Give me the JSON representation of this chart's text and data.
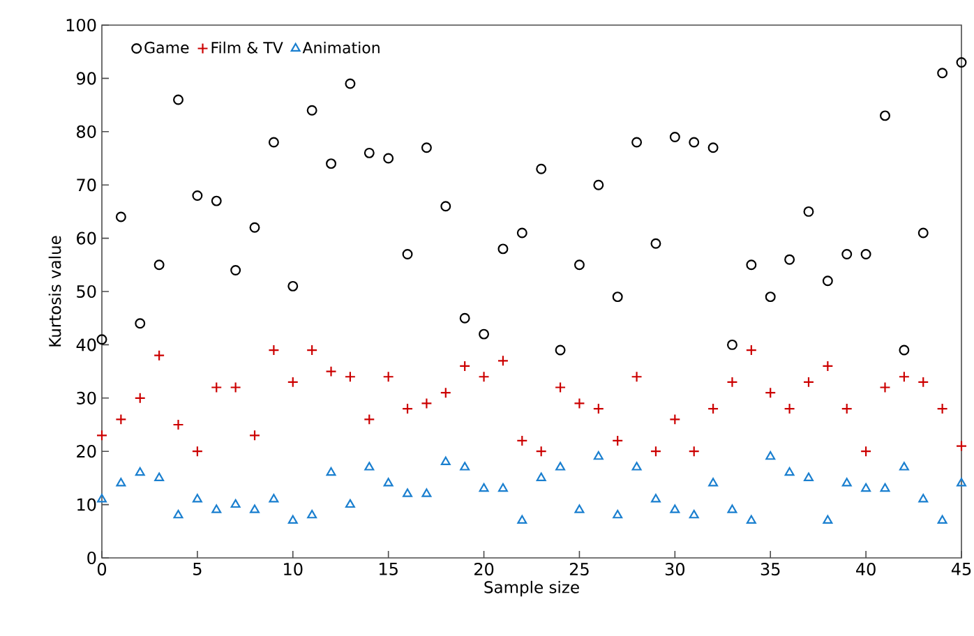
{
  "chart_data": {
    "type": "scatter",
    "xlabel": "Sample size",
    "ylabel": "Kurtosis value",
    "x": [
      0,
      1,
      2,
      3,
      4,
      5,
      6,
      7,
      8,
      9,
      10,
      11,
      12,
      13,
      14,
      15,
      16,
      17,
      18,
      19,
      20,
      21,
      22,
      23,
      24,
      25,
      26,
      27,
      28,
      29,
      30,
      31,
      32,
      33,
      34,
      35,
      36,
      37,
      38,
      39,
      40,
      41,
      42,
      43,
      44,
      45
    ],
    "series": [
      {
        "name": "Game",
        "color": "#000000",
        "marker": "circle",
        "values": [
          41,
          64,
          44,
          55,
          86,
          68,
          67,
          54,
          62,
          78,
          51,
          84,
          74,
          89,
          76,
          75,
          57,
          77,
          66,
          45,
          42,
          58,
          61,
          73,
          39,
          55,
          70,
          49,
          78,
          59,
          79,
          78,
          77,
          40,
          55,
          49,
          56,
          65,
          52,
          57,
          57,
          83,
          39,
          61,
          91,
          93
        ]
      },
      {
        "name": "Film & TV",
        "color": "#cc0000",
        "marker": "cross",
        "values": [
          23,
          26,
          30,
          38,
          25,
          20,
          32,
          32,
          23,
          39,
          33,
          39,
          35,
          34,
          26,
          34,
          28,
          29,
          31,
          36,
          34,
          37,
          22,
          20,
          32,
          29,
          28,
          22,
          34,
          20,
          26,
          20,
          28,
          33,
          39,
          31,
          28,
          33,
          36,
          28,
          20,
          32,
          34,
          33,
          28,
          21
        ]
      },
      {
        "name": "Animation",
        "color": "#1a7fcf",
        "marker": "triangle",
        "values": [
          11,
          14,
          16,
          15,
          8,
          11,
          9,
          10,
          9,
          11,
          7,
          8,
          16,
          10,
          17,
          14,
          12,
          12,
          18,
          17,
          13,
          13,
          7,
          15,
          17,
          9,
          19,
          8,
          17,
          11,
          9,
          8,
          14,
          9,
          7,
          19,
          16,
          15,
          7,
          14,
          13,
          13,
          17,
          11,
          7,
          14
        ]
      }
    ],
    "xlim": [
      0,
      45
    ],
    "xticks": [
      0,
      5,
      10,
      15,
      20,
      25,
      30,
      35,
      40,
      45
    ],
    "ylim": [
      0,
      100
    ],
    "yticks": [
      0,
      10,
      20,
      30,
      40,
      50,
      60,
      70,
      80,
      90,
      100
    ],
    "grid": false,
    "legend": "top left"
  }
}
